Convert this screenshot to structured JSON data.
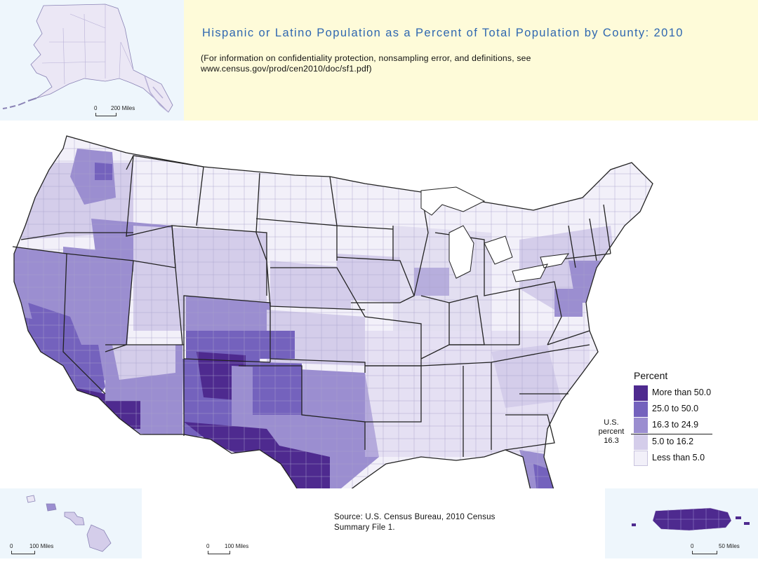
{
  "header": {
    "title": "Hispanic or Latino Population as a Percent of Total Population by County: 2010",
    "note_line1": "(For information on confidentiality protection, nonsampling error, and definitions, see",
    "note_line2": "www.census.gov/prod/cen2010/doc/sf1.pdf)"
  },
  "scales": {
    "alaska": {
      "zero": "0",
      "distance": "200 Miles"
    },
    "hawaii": {
      "zero": "0",
      "distance": "100 Miles"
    },
    "mainland": {
      "zero": "0",
      "distance": "100 Miles"
    },
    "puerto_rico": {
      "zero": "0",
      "distance": "50 Miles"
    }
  },
  "legend": {
    "title": "Percent",
    "classes": [
      {
        "label": "More than 50.0",
        "color": "#4e2a8f"
      },
      {
        "label": "25.0 to 50.0",
        "color": "#7462bd"
      },
      {
        "label": "16.3 to 24.9",
        "color": "#9b8ed0"
      },
      {
        "label": "5.0 to 16.2",
        "color": "#d4cdea"
      },
      {
        "label": "Less than 5.0",
        "color": "#f2f0f9"
      }
    ],
    "us_percent_line1": "U.S.",
    "us_percent_line2": "percent",
    "us_percent_value": "16.3"
  },
  "source": {
    "line1": "Source:  U.S. Census Bureau, 2010 Census",
    "line2": "Summary File 1."
  }
}
